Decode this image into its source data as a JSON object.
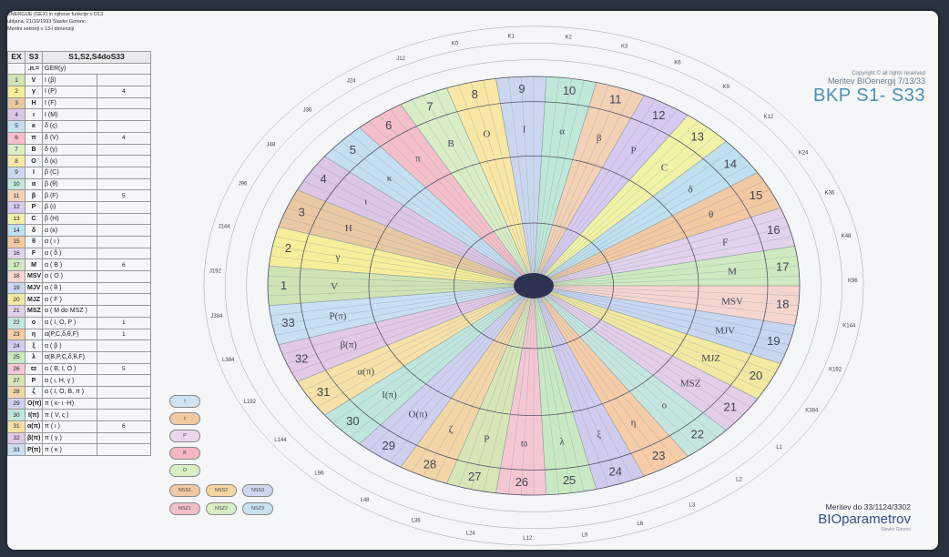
{
  "left_table": {
    "header_lines": [
      "ENERGIJE (GEX) in njihove funkcije v D13",
      "ubljana, 21/10/1993   Slavko Gorenc",
      "Merilni sektorji v 13-i dimenziji"
    ],
    "col_headers": [
      "EX",
      "S3",
      "S1,S2,S4doS33"
    ],
    "sub_headers": [
      "",
      ".n.=",
      "GER(y)"
    ],
    "rows": [
      {
        "n": "1",
        "s": "V",
        "g": "I (β)",
        "x": ""
      },
      {
        "n": "2",
        "s": "γ",
        "g": "I (P)",
        "x": "4"
      },
      {
        "n": "3",
        "s": "H",
        "g": "I (F)",
        "x": ""
      },
      {
        "n": "4",
        "s": "ι",
        "g": "I (M)",
        "x": ""
      },
      {
        "n": "5",
        "s": "κ",
        "g": "δ (ς)",
        "x": ""
      },
      {
        "n": "6",
        "s": "π",
        "g": "δ (V)",
        "x": "4"
      },
      {
        "n": "7",
        "s": "B",
        "g": "δ (γ)",
        "x": ""
      },
      {
        "n": "8",
        "s": "O",
        "g": "δ (κ)",
        "x": ""
      },
      {
        "n": "9",
        "s": "I",
        "g": "β (C)",
        "x": ""
      },
      {
        "n": "10",
        "s": "α",
        "g": "β (θ)",
        "x": ""
      },
      {
        "n": "11",
        "s": "β",
        "g": "β (F)",
        "x": "5"
      },
      {
        "n": "12",
        "s": "P",
        "g": "β (ι)",
        "x": ""
      },
      {
        "n": "13",
        "s": "C",
        "g": "β (H)",
        "x": ""
      },
      {
        "n": "14",
        "s": "δ",
        "g": "α (κ)",
        "x": ""
      },
      {
        "n": "15",
        "s": "θ",
        "g": "α ( ι )",
        "x": ""
      },
      {
        "n": "16",
        "s": "F",
        "g": "α ( δ )",
        "x": ""
      },
      {
        "n": "17",
        "s": "M",
        "g": "α ( B )",
        "x": "6"
      },
      {
        "n": "18",
        "s": "MSV",
        "g": "α ( O )",
        "x": ""
      },
      {
        "n": "19",
        "s": "MJV",
        "g": "α ( θ )",
        "x": ""
      },
      {
        "n": "20",
        "s": "MJZ",
        "g": "α ( F )",
        "x": ""
      },
      {
        "n": "21",
        "s": "MSZ",
        "g": "α ( M do MSZ )",
        "x": ""
      },
      {
        "n": "22",
        "s": "ο",
        "g": "α ( I, O, P )",
        "x": "1"
      },
      {
        "n": "23",
        "s": "η",
        "g": "α(P,C,δ,θ,F)",
        "x": "1"
      },
      {
        "n": "24",
        "s": "ξ",
        "g": "α ( β )",
        "x": ""
      },
      {
        "n": "25",
        "s": "λ",
        "g": "α(B,P,C,δ,θ,F)",
        "x": ""
      },
      {
        "n": "26",
        "s": "ϖ",
        "g": "α ( B, I, O )",
        "x": "5"
      },
      {
        "n": "27",
        "s": "P",
        "g": "α ( ι, H, γ )",
        "x": ""
      },
      {
        "n": "28",
        "s": "ζ",
        "g": "α ( I, O, B, π )",
        "x": ""
      },
      {
        "n": "29",
        "s": "O(π)",
        "g": "π ( κ- ι -H)",
        "x": ""
      },
      {
        "n": "30",
        "s": "I(π)",
        "g": "π ( V, ς )",
        "x": ""
      },
      {
        "n": "31",
        "s": "α(π)",
        "g": "π ( ι )",
        "x": "6"
      },
      {
        "n": "32",
        "s": "β(π)",
        "g": "π ( γ )",
        "x": ""
      },
      {
        "n": "33",
        "s": "P(π)",
        "g": "π ( κ )",
        "x": ""
      }
    ]
  },
  "brand": {
    "small": "Copyright © all rights reserved",
    "model": "Meritev BIOenergij 7/13/33",
    "title": "BKP S1- S33"
  },
  "footer": {
    "measure": "Meritev do 33/1124/3302",
    "name": "BIOparametrov",
    "tiny": "Slavko Gorenc"
  },
  "legend_pills": [
    "I",
    "ς",
    "P",
    "B",
    "O"
  ],
  "bottom_pills": [
    "NSS1",
    "NSS2",
    "NSS3",
    "NSZ1",
    "NSZ2",
    "NSZ3"
  ],
  "wheel": {
    "colors": [
      "#cfe3b4",
      "#f6ee9a",
      "#e9c9a3",
      "#dcc6e6",
      "#c4dff0",
      "#f4bfc9",
      "#d9eec6",
      "#f8e7a5",
      "#cbd7ef",
      "#bfe8d8",
      "#f3d1b5",
      "#d7c9ef",
      "#f1f2a6",
      "#bfe0ee",
      "#f3c9a2",
      "#e2d2ec",
      "#cfeac0",
      "#f5d6cf",
      "#c7d7f2",
      "#f3e9a0",
      "#e3cee8",
      "#c5e6e0",
      "#f6cda7",
      "#d1ccee",
      "#c9e9c3",
      "#f4c7d3",
      "#d8e6b7",
      "#f2d6a8",
      "#cfcff0",
      "#bfe6dc",
      "#f6e1a8",
      "#e4c9e6",
      "#c9e0f2"
    ],
    "sector_labels": [
      "1",
      "2",
      "3",
      "4",
      "5",
      "6",
      "7",
      "8",
      "9",
      "10",
      "11",
      "12",
      "13",
      "14",
      "15",
      "16",
      "17",
      "18",
      "19",
      "20",
      "21",
      "22",
      "23",
      "24",
      "25",
      "26",
      "27",
      "28",
      "29",
      "30",
      "31",
      "32",
      "33"
    ],
    "inner_labels": [
      "V",
      "γ",
      "H",
      "ι",
      "κ",
      "π",
      "B",
      "O",
      "I",
      "α",
      "β",
      "P",
      "C",
      "δ",
      "θ",
      "F",
      "M",
      "MSV",
      "MJV",
      "MJZ",
      "MSZ",
      "ο",
      "η",
      "ξ",
      "λ",
      "ϖ",
      "P",
      "ζ",
      "O(π)",
      "I(π)",
      "α(π)",
      "β(π)",
      "P(π)"
    ],
    "outer_labels": [
      "K0",
      "K1",
      "K2",
      "K3",
      "K6",
      "K9",
      "K12",
      "K24",
      "K36",
      "K48",
      "K96",
      "K144",
      "K192",
      "K384",
      "L1",
      "L2",
      "L3",
      "L6",
      "L9",
      "L12",
      "L24",
      "L36",
      "L48",
      "L96",
      "L144",
      "L192",
      "L384",
      "J384",
      "J192",
      "J144",
      "J96",
      "J48",
      "J36",
      "J24",
      "J12"
    ]
  }
}
